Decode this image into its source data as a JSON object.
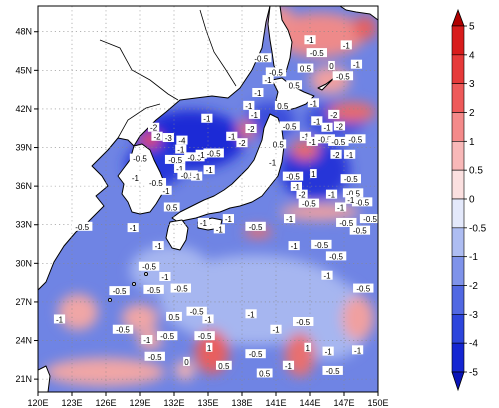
{
  "map": {
    "lon_ticks": [
      "120E",
      "123E",
      "126E",
      "129E",
      "132E",
      "135E",
      "138E",
      "141E",
      "144E",
      "147E",
      "150E"
    ],
    "lat_ticks": [
      "21N",
      "24N",
      "27N",
      "30N",
      "33N",
      "36N",
      "39N",
      "42N",
      "45N",
      "48N"
    ],
    "lon_range": [
      120,
      150
    ],
    "lat_range": [
      20,
      50
    ],
    "grid": "dotted",
    "colors": {
      "land": "#ffffff",
      "coast": "#000000",
      "deep_blue": "#1f2fd8",
      "mid_blue": "#5a6fe0",
      "light_blue": "#9fb0ee",
      "pale_blue": "#d7def8",
      "pale_red": "#f6cccc",
      "light_red": "#ee9090",
      "mid_red": "#de5050"
    },
    "contour_labels": [
      {
        "text": "-0.5",
        "lon": 123.9,
        "lat": 32.8
      },
      {
        "text": "-1",
        "lon": 128.4,
        "lat": 32.7
      },
      {
        "text": "-1",
        "lon": 130.6,
        "lat": 31.3
      },
      {
        "text": "-0.5",
        "lon": 129.8,
        "lat": 29.7
      },
      {
        "text": "-0.5",
        "lon": 127.2,
        "lat": 27.8
      },
      {
        "text": "-0.5",
        "lon": 130.2,
        "lat": 27.9
      },
      {
        "text": "-1",
        "lon": 131.2,
        "lat": 28.9
      },
      {
        "text": "-0.5",
        "lon": 132.6,
        "lat": 28.0
      },
      {
        "text": "-1",
        "lon": 121.9,
        "lat": 25.6
      },
      {
        "text": "-0.5",
        "lon": 127.5,
        "lat": 24.8
      },
      {
        "text": "-1",
        "lon": 129.6,
        "lat": 24.0
      },
      {
        "text": "-0.5",
        "lon": 131.4,
        "lat": 24.3
      },
      {
        "text": "0.5",
        "lon": 132.0,
        "lat": 25.8
      },
      {
        "text": "-0.5",
        "lon": 134.0,
        "lat": 26.2
      },
      {
        "text": "-1",
        "lon": 135.0,
        "lat": 25.6
      },
      {
        "text": "-0.5",
        "lon": 134.7,
        "lat": 24.3
      },
      {
        "text": "1",
        "lon": 135.1,
        "lat": 23.4
      },
      {
        "text": "-0.5",
        "lon": 130.3,
        "lat": 22.7
      },
      {
        "text": "0",
        "lon": 133.1,
        "lat": 22.3
      },
      {
        "text": "0.5",
        "lon": 136.4,
        "lat": 22.0
      },
      {
        "text": "-0.5",
        "lon": 139.2,
        "lat": 22.9
      },
      {
        "text": "-1",
        "lon": 141.0,
        "lat": 24.8
      },
      {
        "text": "-0.5",
        "lon": 143.4,
        "lat": 25.4
      },
      {
        "text": "1",
        "lon": 143.8,
        "lat": 23.4
      },
      {
        "text": "-1",
        "lon": 145.6,
        "lat": 23.1
      },
      {
        "text": "-1",
        "lon": 138.8,
        "lat": 26.0
      },
      {
        "text": "0.5",
        "lon": 140.0,
        "lat": 21.4
      },
      {
        "text": "-1",
        "lon": 145.5,
        "lat": 29.0
      },
      {
        "text": "-0.5",
        "lon": 146.3,
        "lat": 30.5
      },
      {
        "text": "-0.5",
        "lon": 145.0,
        "lat": 31.4
      },
      {
        "text": "-1",
        "lon": 142.6,
        "lat": 31.3
      },
      {
        "text": "-0.5",
        "lon": 148.4,
        "lat": 32.5
      },
      {
        "text": "-0.5",
        "lon": 147.2,
        "lat": 33.1
      },
      {
        "text": "-0.5",
        "lon": 149.3,
        "lat": 33.4
      },
      {
        "text": "-1",
        "lon": 134.6,
        "lat": 33.1
      },
      {
        "text": "-1",
        "lon": 136.0,
        "lat": 32.6
      },
      {
        "text": "-1",
        "lon": 136.8,
        "lat": 33.4
      },
      {
        "text": "-0.5",
        "lon": 139.2,
        "lat": 32.8
      },
      {
        "text": "-1",
        "lon": 142.2,
        "lat": 33.4
      },
      {
        "text": "0.5",
        "lon": 131.8,
        "lat": 34.3
      },
      {
        "text": "-1",
        "lon": 131.3,
        "lat": 35.6
      },
      {
        "text": "-0.5",
        "lon": 130.4,
        "lat": 36.2
      },
      {
        "text": "-1",
        "lon": 128.6,
        "lat": 36.6
      },
      {
        "text": "-0.5",
        "lon": 129.0,
        "lat": 38.1
      },
      {
        "text": "-0.5",
        "lon": 132.1,
        "lat": 38.0
      },
      {
        "text": "-0.5",
        "lon": 133.8,
        "lat": 38.2
      },
      {
        "text": "-1",
        "lon": 132.5,
        "lat": 37.3
      },
      {
        "text": "-0.5",
        "lon": 133.2,
        "lat": 36.8
      },
      {
        "text": "-1",
        "lon": 134.0,
        "lat": 36.7
      },
      {
        "text": "-1",
        "lon": 135.1,
        "lat": 37.2
      },
      {
        "text": "-0.5",
        "lon": 135.5,
        "lat": 38.5
      },
      {
        "text": "-1",
        "lon": 134.4,
        "lat": 38.4
      },
      {
        "text": "-1",
        "lon": 132.6,
        "lat": 38.8
      },
      {
        "text": "-2",
        "lon": 130.2,
        "lat": 40.5
      },
      {
        "text": "-2",
        "lon": 130.5,
        "lat": 39.8
      },
      {
        "text": "-3",
        "lon": 131.5,
        "lat": 39.7
      },
      {
        "text": "-4",
        "lon": 132.7,
        "lat": 39.5
      },
      {
        "text": "-1",
        "lon": 134.9,
        "lat": 41.2
      },
      {
        "text": "-1",
        "lon": 137.1,
        "lat": 39.8
      },
      {
        "text": "-2",
        "lon": 138.8,
        "lat": 40.4
      },
      {
        "text": "-2",
        "lon": 138.0,
        "lat": 39.3
      },
      {
        "text": "-1",
        "lon": 139.1,
        "lat": 41.5
      },
      {
        "text": "-1",
        "lon": 138.6,
        "lat": 42.2
      },
      {
        "text": "-1",
        "lon": 139.4,
        "lat": 43.2
      },
      {
        "text": "-1",
        "lon": 140.3,
        "lat": 44.2
      },
      {
        "text": "-0.5",
        "lon": 139.7,
        "lat": 45.9
      },
      {
        "text": "0.5",
        "lon": 142.6,
        "lat": 43.8
      },
      {
        "text": "0.5",
        "lon": 141.6,
        "lat": 42.2
      },
      {
        "text": "0.5",
        "lon": 143.6,
        "lat": 45.1
      },
      {
        "text": "-0.5",
        "lon": 141.0,
        "lat": 44.8
      },
      {
        "text": "-1",
        "lon": 144.0,
        "lat": 47.3
      },
      {
        "text": "-0.5",
        "lon": 144.6,
        "lat": 46.3
      },
      {
        "text": "0",
        "lon": 145.9,
        "lat": 45.3
      },
      {
        "text": "-0.5",
        "lon": 146.9,
        "lat": 44.5
      },
      {
        "text": "-1",
        "lon": 148.1,
        "lat": 45.4
      },
      {
        "text": "-1",
        "lon": 147.2,
        "lat": 46.9
      },
      {
        "text": "-1",
        "lon": 144.3,
        "lat": 42.4
      },
      {
        "text": "-2",
        "lon": 146.1,
        "lat": 41.5
      },
      {
        "text": "-2",
        "lon": 146.6,
        "lat": 40.6
      },
      {
        "text": "-1",
        "lon": 145.5,
        "lat": 40.5
      },
      {
        "text": "-1",
        "lon": 144.6,
        "lat": 41.0
      },
      {
        "text": "-0.5",
        "lon": 142.2,
        "lat": 40.6
      },
      {
        "text": "-1",
        "lon": 143.6,
        "lat": 39.8
      },
      {
        "text": "-1",
        "lon": 144.2,
        "lat": 39.4
      },
      {
        "text": "-0.5",
        "lon": 145.3,
        "lat": 39.6
      },
      {
        "text": "-0.5",
        "lon": 146.5,
        "lat": 39.4
      },
      {
        "text": "-2",
        "lon": 146.3,
        "lat": 38.4
      },
      {
        "text": "-1",
        "lon": 147.5,
        "lat": 38.4
      },
      {
        "text": "-0.5",
        "lon": 148.0,
        "lat": 39.6
      },
      {
        "text": "0.5",
        "lon": 141.2,
        "lat": 39.2
      },
      {
        "text": "-1",
        "lon": 140.7,
        "lat": 37.8
      },
      {
        "text": "1",
        "lon": 144.3,
        "lat": 36.9
      },
      {
        "text": "-0.5",
        "lon": 147.6,
        "lat": 36.5
      },
      {
        "text": "-1",
        "lon": 142.8,
        "lat": 35.9
      },
      {
        "text": "-2",
        "lon": 143.3,
        "lat": 35.3
      },
      {
        "text": "-0.5",
        "lon": 143.9,
        "lat": 34.6
      },
      {
        "text": "-0.5",
        "lon": 142.5,
        "lat": 36.7
      },
      {
        "text": "-1",
        "lon": 145.9,
        "lat": 35.3
      },
      {
        "text": "-0.5",
        "lon": 147.8,
        "lat": 35.4
      },
      {
        "text": "-0.5",
        "lon": 148.6,
        "lat": 34.7
      },
      {
        "text": "-1",
        "lon": 147.6,
        "lat": 34.9
      },
      {
        "text": "-1",
        "lon": 146.7,
        "lat": 34.3
      },
      {
        "text": "-0.5",
        "lon": 148.7,
        "lat": 28.0
      },
      {
        "text": "-0.5",
        "lon": 146.0,
        "lat": 21.6
      },
      {
        "text": "-1",
        "lon": 148.2,
        "lat": 23.2
      },
      {
        "text": "-1",
        "lon": 142.1,
        "lat": 22.0
      }
    ]
  },
  "colorbar": {
    "levels": [
      "5",
      "4",
      "3",
      "2",
      "1",
      "0.5",
      "0",
      "-0.5",
      "-1",
      "-2",
      "-3",
      "-4",
      "-5"
    ],
    "colors": [
      "#b00000",
      "#d81c1c",
      "#e63a3a",
      "#ee5a5a",
      "#f48a8a",
      "#f8b8b8",
      "#fbe0e0",
      "#e4e9fb",
      "#aebdf2",
      "#7f93ea",
      "#5168e2",
      "#2d45dc",
      "#1526d2",
      "#0a14b8"
    ]
  }
}
